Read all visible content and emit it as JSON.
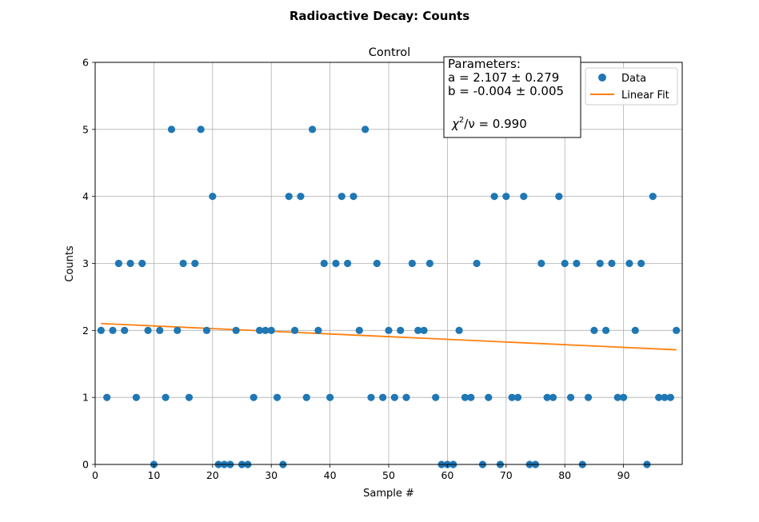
{
  "chart_data": {
    "type": "scatter",
    "suptitle": "Radioactive Decay: Counts",
    "title": "Control",
    "xlabel": "Sample #",
    "ylabel": "Counts",
    "xlim": [
      0,
      100
    ],
    "ylim": [
      0,
      6
    ],
    "xticks": [
      0,
      10,
      20,
      30,
      40,
      50,
      60,
      70,
      80,
      90
    ],
    "yticks": [
      0,
      1,
      2,
      3,
      4,
      5,
      6
    ],
    "grid": true,
    "legend_position": "top-right",
    "series": [
      {
        "name": "Data",
        "kind": "scatter",
        "color": "#1f77b4",
        "x": [
          1,
          2,
          3,
          4,
          5,
          6,
          7,
          8,
          9,
          10,
          11,
          12,
          13,
          14,
          15,
          16,
          17,
          18,
          19,
          20,
          21,
          22,
          23,
          24,
          25,
          26,
          27,
          28,
          29,
          30,
          31,
          32,
          33,
          34,
          35,
          36,
          37,
          38,
          39,
          40,
          41,
          42,
          43,
          44,
          45,
          46,
          47,
          48,
          49,
          50,
          51,
          52,
          53,
          54,
          55,
          56,
          57,
          58,
          59,
          60,
          61,
          62,
          63,
          64,
          65,
          66,
          67,
          68,
          69,
          70,
          71,
          72,
          73,
          74,
          75,
          76,
          77,
          78,
          79,
          80,
          81,
          82,
          83,
          84,
          85,
          86,
          87,
          88,
          89,
          90,
          91,
          92,
          93,
          94,
          95,
          96,
          97,
          98,
          99
        ],
        "y": [
          2,
          1,
          2,
          3,
          2,
          3,
          1,
          3,
          2,
          0,
          2,
          1,
          5,
          2,
          3,
          1,
          3,
          5,
          2,
          4,
          0,
          0,
          0,
          2,
          0,
          0,
          1,
          2,
          2,
          2,
          1,
          0,
          4,
          2,
          4,
          1,
          5,
          2,
          3,
          1,
          3,
          4,
          3,
          4,
          2,
          5,
          1,
          3,
          1,
          2,
          1,
          2,
          1,
          3,
          2,
          2,
          3,
          1,
          0,
          0,
          0,
          2,
          1,
          1,
          3,
          0,
          1,
          4,
          0,
          4,
          1,
          1,
          4,
          0,
          0,
          3,
          1,
          1,
          4,
          3,
          1,
          3,
          0,
          1,
          2,
          3,
          2,
          3,
          1,
          1,
          3,
          2,
          3,
          0,
          4,
          1,
          1,
          1,
          2
        ]
      },
      {
        "name": "Linear Fit",
        "kind": "line",
        "color": "#ff7f0e",
        "x": [
          1,
          99
        ],
        "y": [
          2.103,
          1.711
        ]
      }
    ],
    "annotation": {
      "line1": "Parameters:",
      "line2": "a = 2.107 ± 0.279",
      "line3": "b = -0.004 ± 0.005",
      "chi_prefix": "χ",
      "chi_sup": "2",
      "chi_suffix": "/ν = 0.990"
    }
  }
}
